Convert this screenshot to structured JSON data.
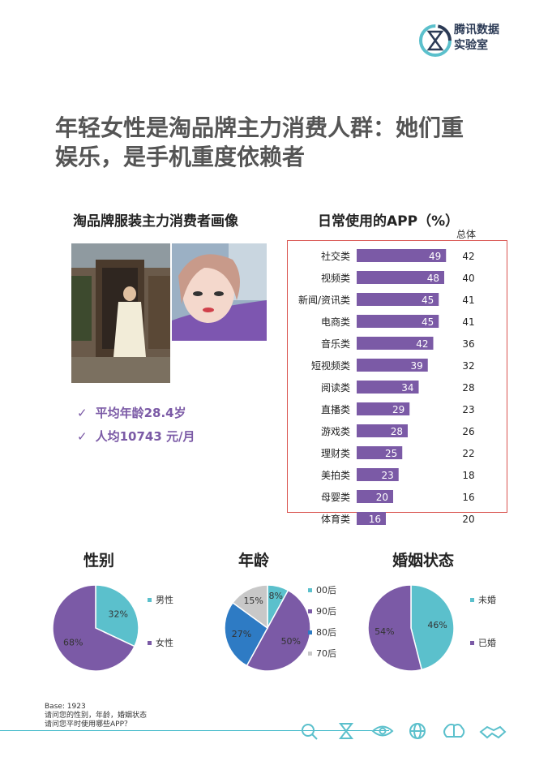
{
  "brand": {
    "logo_line1": "腾讯数据",
    "logo_line2": "实验室",
    "logo_icon": "hourglass-logo-icon"
  },
  "title_line1": "年轻女性是淘品牌主力消费人群：她们重",
  "title_line2": "娱乐，是手机重度依赖者",
  "profile": {
    "heading": "淘品牌服装主力消费者画像",
    "stats": [
      "平均年龄28.4岁",
      "人均10743 元/月"
    ]
  },
  "colors": {
    "purple": "#7b5aa6",
    "teal": "#5bc0cc",
    "blue": "#2e7bc4",
    "gray": "#c8c8c8",
    "highlight": "#d9534f"
  },
  "chart_data": [
    {
      "type": "bar",
      "title": "日常使用的APP（%）",
      "orientation": "horizontal",
      "categories": [
        "社交类",
        "视频类",
        "新闻/资讯类",
        "电商类",
        "音乐类",
        "短视频类",
        "阅读类",
        "直播类",
        "游戏类",
        "理财类",
        "美拍类",
        "母婴类",
        "体育类"
      ],
      "series": [
        {
          "values": [
            49,
            48,
            45,
            45,
            42,
            39,
            34,
            29,
            28,
            25,
            23,
            20,
            16
          ]
        },
        {
          "name": "总体",
          "values": [
            42,
            40,
            41,
            41,
            36,
            32,
            28,
            23,
            26,
            22,
            18,
            16,
            20
          ]
        }
      ],
      "highlight_rows": 12
    },
    {
      "type": "pie",
      "title": "性别",
      "labels": [
        "男性",
        "女性"
      ],
      "values": [
        32,
        68
      ],
      "value_labels": [
        "32%",
        "68%"
      ],
      "colors": [
        "#5bc0cc",
        "#7b5aa6"
      ]
    },
    {
      "type": "pie",
      "title": "年龄",
      "labels": [
        "00后",
        "90后",
        "80后",
        "70后"
      ],
      "values": [
        8,
        50,
        27,
        15
      ],
      "value_labels": [
        "8%",
        "50%",
        "27%",
        "15%"
      ],
      "colors": [
        "#5bc0cc",
        "#7b5aa6",
        "#2e7bc4",
        "#c8c8c8"
      ]
    },
    {
      "type": "pie",
      "title": "婚姻状态",
      "labels": [
        "未婚",
        "已婚"
      ],
      "values": [
        46,
        54
      ],
      "value_labels": [
        "46%",
        "54%"
      ],
      "colors": [
        "#5bc0cc",
        "#7b5aa6"
      ]
    }
  ],
  "footer": {
    "base": "Base: 1923",
    "q1": "请问您的性别，年龄，婚姻状态",
    "q2": "请问您平时使用哪些APP？",
    "icons": [
      "search-icon",
      "hourglass-icon",
      "eye-icon",
      "globe-icon",
      "brain-icon",
      "handshake-icon"
    ]
  }
}
